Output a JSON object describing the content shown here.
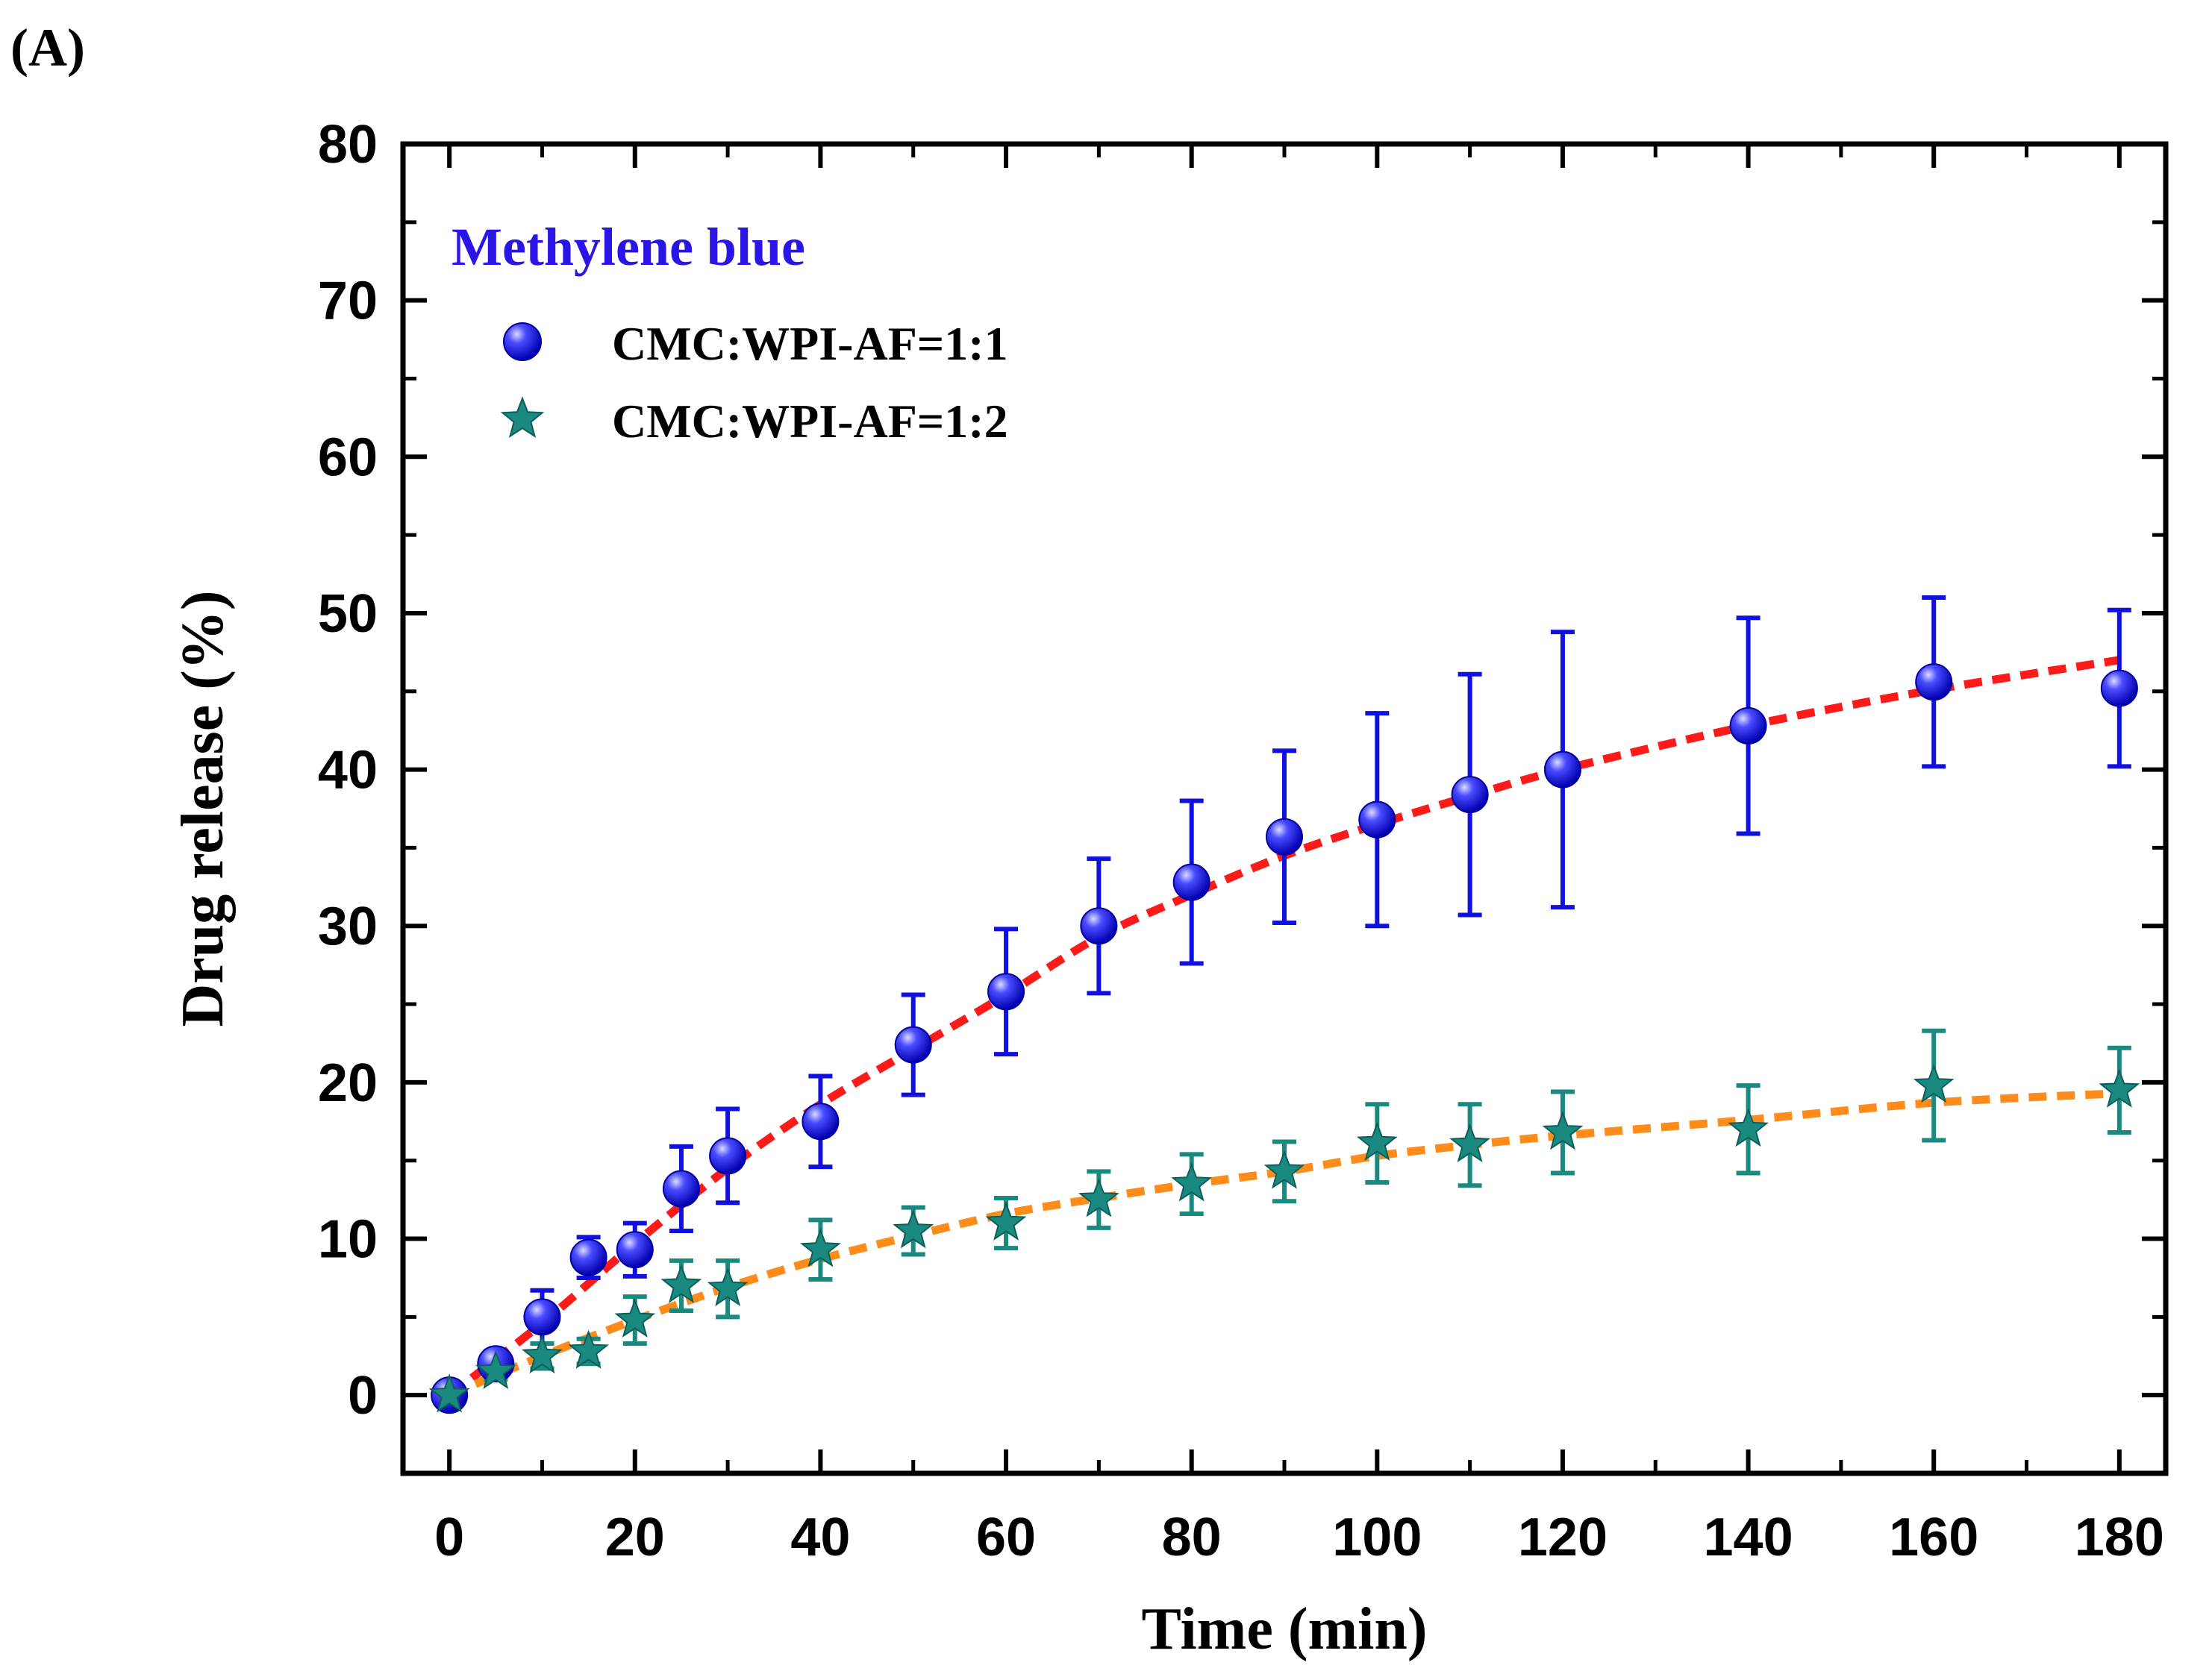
{
  "panel_label": "(A)",
  "chart_data": {
    "type": "scatter",
    "title": "",
    "xlabel": "Time (min)",
    "ylabel": "Drug release (%)",
    "xlim": [
      -5,
      185
    ],
    "ylim": [
      -5,
      80
    ],
    "xticks": [
      0,
      20,
      40,
      60,
      80,
      100,
      120,
      140,
      160,
      180
    ],
    "yticks": [
      0,
      10,
      20,
      30,
      40,
      50,
      60,
      70,
      80
    ],
    "legend_title": "Methylene blue",
    "legend_placement": "top-left",
    "series": [
      {
        "name": "CMC:WPI-AF=1:1",
        "marker": "circle",
        "color": "#1010e0",
        "fit_color": "#ff1a1a",
        "x": [
          0,
          5,
          10,
          15,
          20,
          25,
          30,
          40,
          50,
          60,
          70,
          80,
          90,
          100,
          110,
          120,
          140,
          160,
          180
        ],
        "values": [
          0,
          2,
          5,
          8.8,
          9.3,
          13.2,
          15.3,
          17.5,
          22.4,
          25.8,
          30,
          32.8,
          35.7,
          36.8,
          38.4,
          40,
          42.8,
          45.6,
          45.2
        ],
        "errors": [
          0.5,
          0.8,
          1.7,
          1.3,
          1.7,
          2.7,
          3,
          2.9,
          3.2,
          4,
          4.3,
          5.2,
          5.5,
          6.8,
          7.7,
          8.8,
          6.9,
          5.4,
          5
        ],
        "fit": [
          [
            0,
            0
          ],
          [
            10,
            4.6
          ],
          [
            20,
            9.7
          ],
          [
            30,
            14.5
          ],
          [
            40,
            18.6
          ],
          [
            50,
            22.1
          ],
          [
            60,
            25.6
          ],
          [
            70,
            29.3
          ],
          [
            80,
            32
          ],
          [
            90,
            34.5
          ],
          [
            100,
            36.5
          ],
          [
            110,
            38.3
          ],
          [
            120,
            40
          ],
          [
            140,
            42.8
          ],
          [
            160,
            45.1
          ],
          [
            180,
            47
          ]
        ]
      },
      {
        "name": "CMC:WPI-AF=1:2",
        "marker": "star",
        "color": "#1a8a80",
        "fit_color": "#ff8c1a",
        "x": [
          0,
          5,
          10,
          15,
          20,
          25,
          30,
          40,
          50,
          60,
          70,
          80,
          90,
          100,
          110,
          120,
          140,
          160,
          180
        ],
        "values": [
          0,
          1.5,
          2.5,
          2.8,
          4.8,
          7,
          6.8,
          9.3,
          10.5,
          11,
          12.5,
          13.5,
          14.3,
          16.1,
          16,
          16.8,
          17,
          19.8,
          19.5
        ],
        "errors": [
          0.4,
          0.5,
          0.8,
          0.8,
          1.5,
          1.6,
          1.8,
          1.9,
          1.5,
          1.6,
          1.8,
          1.9,
          1.9,
          2.5,
          2.6,
          2.6,
          2.8,
          3.5,
          2.7
        ],
        "fit": [
          [
            0,
            0
          ],
          [
            10,
            2.5
          ],
          [
            20,
            4.8
          ],
          [
            30,
            6.9
          ],
          [
            40,
            8.7
          ],
          [
            50,
            10.2
          ],
          [
            60,
            11.6
          ],
          [
            70,
            12.6
          ],
          [
            80,
            13.5
          ],
          [
            90,
            14.3
          ],
          [
            100,
            15.3
          ],
          [
            110,
            16
          ],
          [
            120,
            16.6
          ],
          [
            140,
            17.6
          ],
          [
            160,
            18.7
          ],
          [
            180,
            19.3
          ]
        ]
      }
    ]
  }
}
